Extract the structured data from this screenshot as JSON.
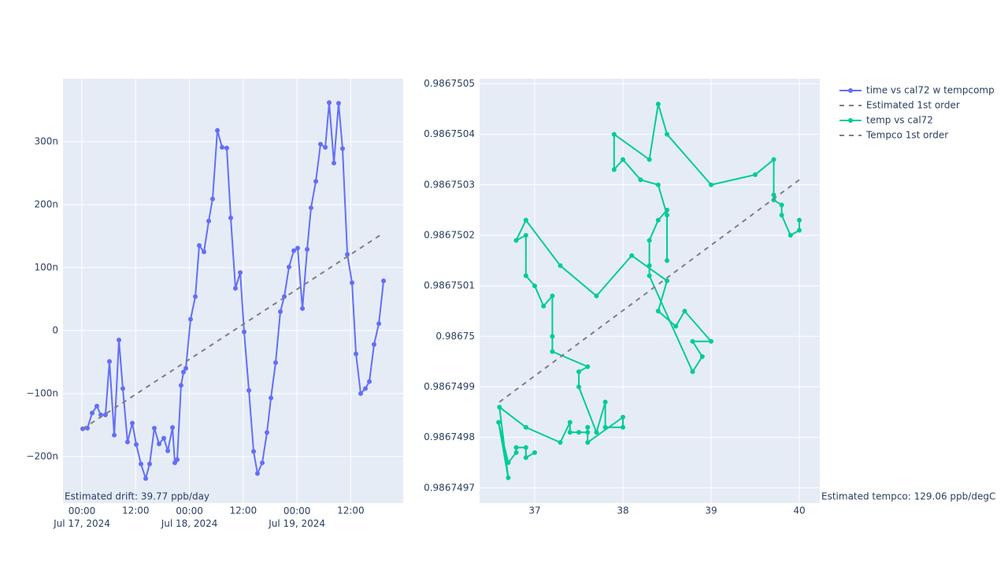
{
  "chart_data": [
    {
      "type": "line",
      "annotation": "Estimated drift:  39.77 ppb/day",
      "xlim": [
        "2024-07-16 19:47",
        "2024-07-19 23:42"
      ],
      "xticks": [
        {
          "value": "2024-07-17 00:00",
          "label": "00:00\nJul 17, 2024"
        },
        {
          "value": "2024-07-17 12:00",
          "label": "12:00"
        },
        {
          "value": "2024-07-18 00:00",
          "label": "00:00\nJul 18, 2024"
        },
        {
          "value": "2024-07-18 12:00",
          "label": "12:00"
        },
        {
          "value": "2024-07-19 00:00",
          "label": "00:00\nJul 19, 2024"
        },
        {
          "value": "2024-07-19 12:00",
          "label": "12:00"
        }
      ],
      "ylim": [
        -2.74e-07,
        4e-07
      ],
      "yticks": [
        {
          "value": -2e-07,
          "label": "−200n"
        },
        {
          "value": -1e-07,
          "label": "−100n"
        },
        0,
        {
          "value": 1e-07,
          "label": "100n"
        },
        {
          "value": 2e-07,
          "label": "200n"
        },
        {
          "value": 3e-07,
          "label": "300n"
        }
      ],
      "grid": true,
      "series": [
        {
          "name": "time vs cal72 w tempcomp",
          "color": "#636efa",
          "markers": true,
          "x": [
            "2024-07-17 00:11",
            "2024-07-17 01:14",
            "2024-07-17 02:17",
            "2024-07-17 03:20",
            "2024-07-17 04:13",
            "2024-07-17 05:16",
            "2024-07-17 06:09",
            "2024-07-17 07:13",
            "2024-07-17 08:16",
            "2024-07-17 09:08",
            "2024-07-17 10:11",
            "2024-07-17 11:15",
            "2024-07-17 12:08",
            "2024-07-17 13:11",
            "2024-07-17 14:14",
            "2024-07-17 15:07",
            "2024-07-17 16:10",
            "2024-07-17 17:13",
            "2024-07-17 18:17",
            "2024-07-17 19:10",
            "2024-07-17 20:13",
            "2024-07-17 20:44",
            "2024-07-17 21:16",
            "2024-07-17 22:08",
            "2024-07-17 22:40",
            "2024-07-17 23:12",
            "2024-07-18 00:15",
            "2024-07-18 01:19",
            "2024-07-18 02:11",
            "2024-07-18 03:14",
            "2024-07-18 04:18",
            "2024-07-18 05:10",
            "2024-07-18 06:14",
            "2024-07-18 07:17",
            "2024-07-18 08:20",
            "2024-07-18 09:13",
            "2024-07-18 10:16",
            "2024-07-18 11:20",
            "2024-07-18 12:12",
            "2024-07-18 13:16",
            "2024-07-18 14:19",
            "2024-07-18 15:11",
            "2024-07-18 16:15",
            "2024-07-18 17:18",
            "2024-07-18 18:11",
            "2024-07-18 19:14",
            "2024-07-18 20:17",
            "2024-07-18 21:10",
            "2024-07-18 22:13",
            "2024-07-18 23:17",
            "2024-07-19 00:09",
            "2024-07-19 01:13",
            "2024-07-19 02:16",
            "2024-07-19 03:08",
            "2024-07-19 04:12",
            "2024-07-19 05:15",
            "2024-07-19 06:19",
            "2024-07-19 07:11",
            "2024-07-19 08:14",
            "2024-07-19 09:17",
            "2024-07-19 10:10",
            "2024-07-19 11:14",
            "2024-07-19 12:17",
            "2024-07-19 13:10",
            "2024-07-19 14:13",
            "2024-07-19 15:16",
            "2024-07-19 16:09",
            "2024-07-19 17:12",
            "2024-07-19 18:16",
            "2024-07-19 19:19"
          ],
          "values": [
            -1.56e-07,
            -1.55e-07,
            -1.31e-07,
            -1.2e-07,
            -1.34e-07,
            -1.34e-07,
            -4.9e-08,
            -1.66e-07,
            -1.5e-08,
            -9.2e-08,
            -1.77e-07,
            -1.47e-07,
            -1.81e-07,
            -2.12e-07,
            -2.35e-07,
            -2.12e-07,
            -1.55e-07,
            -1.8e-07,
            -1.71e-07,
            -1.91e-07,
            -1.54e-07,
            -2.1e-07,
            -2.05e-07,
            -8.7e-08,
            -6.6e-08,
            -6e-08,
            1.8e-08,
            5.4e-08,
            1.35e-07,
            1.25e-07,
            1.74e-07,
            2.09e-07,
            3.18e-07,
            2.91e-07,
            2.9e-07,
            1.79e-07,
            6.7e-08,
            9.2e-08,
            -2e-09,
            -9.5e-08,
            -1.92e-07,
            -2.27e-07,
            -2.1e-07,
            -1.62e-07,
            -1.07e-07,
            -5.1e-08,
            3e-08,
            5.4e-08,
            1.01e-07,
            1.27e-07,
            1.31e-07,
            3.5e-08,
            1.29e-07,
            1.95e-07,
            2.37e-07,
            2.96e-07,
            2.91e-07,
            3.62e-07,
            2.66e-07,
            3.61e-07,
            2.89e-07,
            1.21e-07,
            7.6e-08,
            -3.7e-08,
            -1e-07,
            -9.2e-08,
            -8.1e-08,
            -2.2e-08,
            1.1e-08,
            7.9e-08
          ]
        },
        {
          "name": "Estimated 1st order",
          "color": "#7f7f7f",
          "dash": true,
          "x": [
            "2024-07-17 00:11",
            "2024-07-19 19:19"
          ],
          "values": [
            -1.56e-07,
            1.55e-07
          ]
        }
      ]
    },
    {
      "type": "line",
      "annotation": "Estimated tempco:  129.06 ppb/degC",
      "xlim": [
        36.375,
        40.232
      ],
      "xticks": [
        37,
        38,
        39,
        40
      ],
      "ylim": [
        0.98674967,
        0.98675051
      ],
      "yticks": [
        0.9867497,
        0.9867498,
        0.9867499,
        0.98675,
        0.9867501,
        0.9867502,
        0.9867503,
        0.9867504,
        0.9867505
      ],
      "grid": true,
      "series": [
        {
          "name": "temp vs cal72",
          "color": "#00cc96",
          "markers": true,
          "x": [
            37.0,
            36.9,
            36.9,
            36.79,
            36.79,
            36.7,
            36.59,
            36.7,
            36.6,
            36.9,
            37.29,
            37.4,
            37.4,
            37.5,
            37.6,
            37.6,
            37.6,
            38.0,
            38.0,
            37.8,
            37.8,
            37.7,
            37.5,
            37.5,
            37.6,
            37.2,
            37.2,
            37.2,
            37.1,
            37.0,
            36.9,
            36.9,
            36.79,
            36.9,
            37.29,
            37.7,
            38.1,
            38.5,
            38.4,
            38.6,
            38.7,
            39.0,
            38.79,
            38.9,
            38.79,
            38.3,
            38.3,
            38.3,
            38.4,
            38.5,
            38.5,
            38.5,
            38.4,
            38.2,
            38.0,
            37.9,
            37.9,
            38.3,
            38.4,
            38.5,
            39.0,
            39.5,
            39.71,
            39.71,
            39.71,
            39.8,
            39.8,
            39.9,
            40.0,
            40.0
          ],
          "values": [
            0.98674977,
            0.98674976,
            0.98674978,
            0.98674978,
            0.98674977,
            0.98674975,
            0.98674983,
            0.98674972,
            0.98674986,
            0.98674982,
            0.98674979,
            0.98674983,
            0.98674981,
            0.98674981,
            0.98674981,
            0.98674982,
            0.98674979,
            0.98674984,
            0.98674982,
            0.98674982,
            0.98674987,
            0.98674981,
            0.9867499,
            0.98674993,
            0.98674994,
            0.98674997,
            0.98675,
            0.98675008,
            0.98675006,
            0.9867501,
            0.98675012,
            0.9867502,
            0.98675019,
            0.98675023,
            0.98675014,
            0.98675008,
            0.98675016,
            0.98675011,
            0.98675005,
            0.98675002,
            0.98675005,
            0.98674999,
            0.98674999,
            0.98674996,
            0.98674993,
            0.98675012,
            0.98675014,
            0.98675019,
            0.98675023,
            0.98675025,
            0.98675015,
            0.98675024,
            0.9867503,
            0.98675031,
            0.98675035,
            0.98675033,
            0.9867504,
            0.98675035,
            0.98675046,
            0.9867504,
            0.9867503,
            0.98675032,
            0.98675035,
            0.98675028,
            0.98675027,
            0.98675026,
            0.98675024,
            0.9867502,
            0.98675021,
            0.98675023
          ]
        },
        {
          "name": "Tempco 1st order",
          "color": "#7f7f7f",
          "dash": true,
          "x": [
            36.6,
            40.0
          ],
          "values": [
            0.98674987,
            0.98675031
          ]
        }
      ]
    }
  ]
}
